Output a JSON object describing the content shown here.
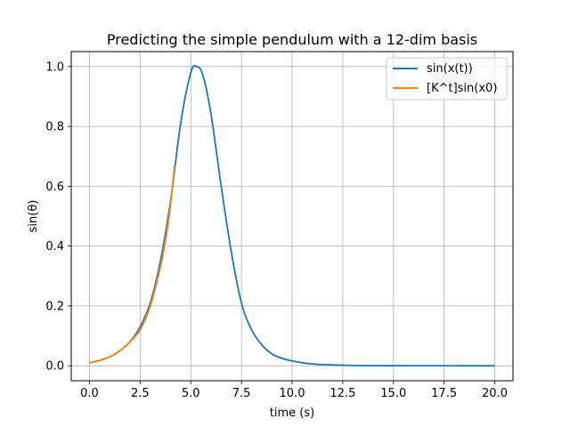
{
  "chart_data": {
    "type": "line",
    "title": "Predicting the simple pendulum with a 12-dim basis",
    "xlabel": "time (s)",
    "ylabel": "sin(θ)",
    "xlim": [
      -0.9,
      20.9
    ],
    "ylim": [
      -0.05,
      1.05
    ],
    "xticks": [
      0.0,
      2.5,
      5.0,
      7.5,
      10.0,
      12.5,
      15.0,
      17.5,
      20.0
    ],
    "xtick_labels": [
      "0.0",
      "2.5",
      "5.0",
      "7.5",
      "10.0",
      "12.5",
      "15.0",
      "17.5",
      "20.0"
    ],
    "yticks": [
      0.0,
      0.2,
      0.4,
      0.6,
      0.8,
      1.0
    ],
    "ytick_labels": [
      "0.0",
      "0.2",
      "0.4",
      "0.6",
      "0.8",
      "1.0"
    ],
    "grid": true,
    "legend_position": "top-right",
    "series": [
      {
        "name": "sin(x(t))",
        "color": "#1f77b4",
        "x": [
          0.0,
          0.5,
          1.0,
          1.5,
          2.0,
          2.5,
          3.0,
          3.5,
          4.0,
          4.5,
          5.0,
          5.3,
          5.6,
          6.0,
          6.5,
          7.0,
          7.5,
          8.0,
          8.5,
          9.0,
          9.5,
          10.0,
          10.5,
          11.0,
          11.5,
          12.0,
          12.5,
          13.0,
          14.0,
          15.0,
          16.0,
          17.0,
          18.0,
          19.0,
          20.0
        ],
        "y": [
          0.01,
          0.018,
          0.03,
          0.05,
          0.08,
          0.13,
          0.21,
          0.35,
          0.55,
          0.81,
          0.98,
          1.0,
          0.97,
          0.84,
          0.6,
          0.38,
          0.21,
          0.12,
          0.07,
          0.04,
          0.025,
          0.016,
          0.01,
          0.006,
          0.004,
          0.003,
          0.002,
          0.001,
          0.0005,
          0.0003,
          0.0002,
          0.0001,
          0.0001,
          0.0,
          0.0
        ]
      },
      {
        "name": "[K^t]sin(x0)",
        "color": "#ff7f0e",
        "x": [
          0.0,
          0.5,
          1.0,
          1.5,
          2.0,
          2.5,
          3.0,
          3.5,
          3.8,
          4.0,
          4.2
        ],
        "y": [
          0.01,
          0.018,
          0.03,
          0.05,
          0.08,
          0.12,
          0.2,
          0.33,
          0.44,
          0.54,
          0.67
        ]
      }
    ]
  }
}
